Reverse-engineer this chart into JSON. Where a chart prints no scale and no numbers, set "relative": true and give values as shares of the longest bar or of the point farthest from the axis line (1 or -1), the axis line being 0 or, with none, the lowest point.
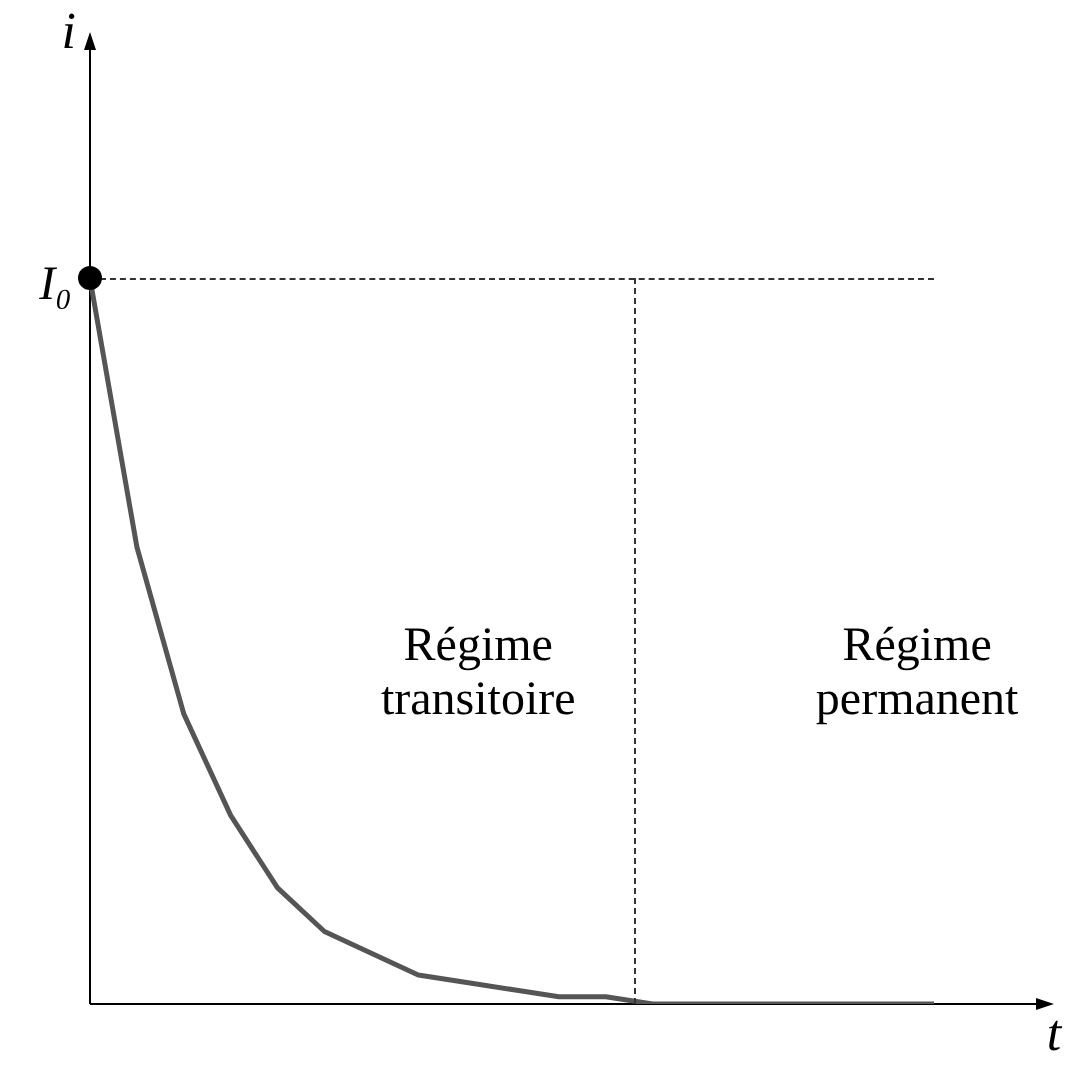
{
  "chart_data": {
    "type": "line",
    "relative": true,
    "xlabel": "t",
    "ylabel": "i",
    "tick_labels": false,
    "grid": false,
    "legend": false,
    "marker": "none",
    "categories": [
      null,
      null,
      null,
      null,
      null,
      null,
      null,
      null,
      null,
      null,
      null,
      null,
      null,
      null,
      null,
      null,
      null,
      null,
      null
    ],
    "series": [
      {
        "color": "#555555",
        "values": [
          1,
          0.63,
          0.4,
          0.26,
          0.16,
          0.1,
          0.07,
          0.04,
          0.03,
          0.02,
          0.01,
          0.01,
          0,
          0,
          0,
          0,
          0,
          0,
          0
        ]
      }
    ],
    "annotations": [
      "I₀",
      "Régime\ntransitoire",
      "Régime\npermanent"
    ]
  }
}
